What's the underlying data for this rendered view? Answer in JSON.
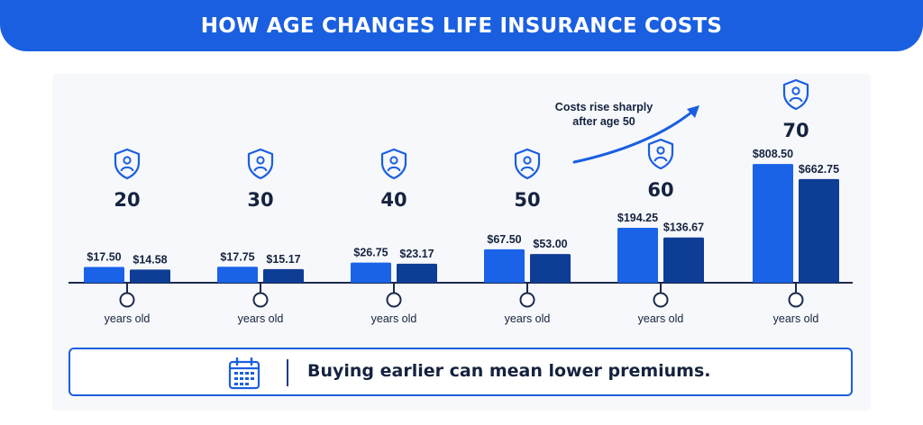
{
  "header": {
    "title": "HOW AGE CHANGES LIFE INSURANCE COSTS"
  },
  "chart_data": {
    "type": "bar",
    "title": "HOW AGE CHANGES LIFE INSURANCE COSTS",
    "categories": [
      "20",
      "30",
      "40",
      "50",
      "60",
      "70"
    ],
    "category_sublabel": "years old",
    "series": [
      {
        "values": [
          17.5,
          17.75,
          26.75,
          67.5,
          194.25,
          808.5
        ],
        "labels": [
          "$17.50",
          "$17.75",
          "$26.75",
          "$67.50",
          "$194.25",
          "$808.50"
        ]
      },
      {
        "values": [
          14.58,
          15.17,
          23.17,
          53.0,
          136.67,
          662.75
        ],
        "labels": [
          "$14.58",
          "$15.17",
          "$23.17",
          "$53.00",
          "$136.67",
          "$662.75"
        ]
      }
    ],
    "ylim": [
      0,
      850
    ],
    "annotation": "Costs rise sharply after age 50",
    "colors": {
      "series_a": "#1a62e8",
      "series_b": "#0d3d95",
      "axis": "#1b2a4e",
      "text": "#15233f"
    },
    "category_icon": "shield-person-icon"
  },
  "callout": {
    "icon": "calendar-icon",
    "text": "Buying earlier can mean lower premiums."
  }
}
